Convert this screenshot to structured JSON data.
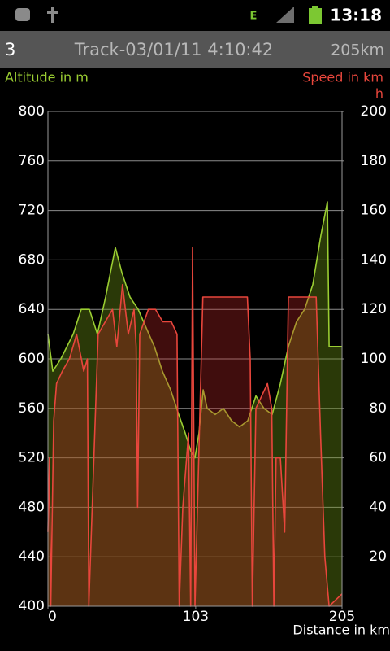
{
  "status_bar": {
    "time": "13:18"
  },
  "title_bar": {
    "track_number": "3",
    "title": "Track-03/01/11 4:10:42",
    "distance": "205km"
  },
  "chart_data": {
    "type": "area",
    "y_label": "Altitude in m",
    "y2_label_lines": [
      "Speed in km",
      "h"
    ],
    "x_label": "Distance in km",
    "xlim": [
      0,
      205
    ],
    "xticks": [
      0,
      103,
      205
    ],
    "ylim": [
      400,
      800
    ],
    "yticks": [
      400,
      440,
      480,
      520,
      560,
      600,
      640,
      680,
      720,
      760,
      800
    ],
    "y2lim": [
      0,
      200
    ],
    "y2ticks": [
      20,
      40,
      60,
      80,
      100,
      120,
      140,
      160,
      180,
      200
    ],
    "grid": true,
    "series": [
      {
        "name": "Altitude in m",
        "color": "#9acd32",
        "fill": "rgba(110,150,20,0.38)",
        "x": [
          0,
          3.4,
          9,
          17.6,
          23.2,
          28.9,
          34.5,
          40.2,
          47,
          51.5,
          57.2,
          62.9,
          68.5,
          74.2,
          79.8,
          85.5,
          91.2,
          95.7,
          99.7,
          102.5,
          105.3,
          108.2,
          111,
          116.6,
          122.3,
          128,
          133.6,
          139.3,
          145,
          150.6,
          156.3,
          162,
          167.6,
          173.3,
          178.9,
          184.6,
          190.3,
          194.8,
          196,
          205
        ],
        "values": [
          620,
          590,
          600,
          620,
          640,
          640,
          620,
          650,
          690,
          670,
          650,
          640,
          625,
          610,
          590,
          575,
          555,
          540,
          525,
          520,
          540,
          575,
          560,
          555,
          560,
          550,
          545,
          550,
          570,
          560,
          555,
          580,
          610,
          630,
          640,
          660,
          700,
          727,
          610,
          610
        ]
      },
      {
        "name": "Speed in km h",
        "color": "#e8463c",
        "fill": "rgba(200,40,40,0.32)",
        "axis": "y2",
        "x": [
          0,
          1,
          2,
          4,
          6,
          10,
          15,
          20,
          25,
          27.5,
          28.5,
          35,
          40,
          45,
          48,
          52,
          56,
          60,
          61.5,
          62.5,
          64,
          70,
          75,
          80,
          86,
          90,
          91.5,
          94,
          98,
          99.5,
          100.8,
          102.5,
          106,
          108,
          120,
          130,
          139,
          141,
          142.5,
          145,
          153,
          156,
          157.5,
          159,
          162,
          165,
          167.6,
          175,
          187,
          190,
          193,
          196,
          205
        ],
        "values": [
          30,
          60,
          0,
          75,
          90,
          95,
          100,
          110,
          95,
          100,
          0,
          110,
          115,
          120,
          105,
          130,
          110,
          120,
          105,
          40,
          110,
          120,
          120,
          115,
          115,
          110,
          0,
          40,
          70,
          0,
          145,
          0,
          80,
          125,
          125,
          125,
          125,
          100,
          0,
          80,
          90,
          80,
          0,
          60,
          60,
          30,
          125,
          125,
          125,
          70,
          20,
          0,
          5
        ]
      }
    ]
  }
}
